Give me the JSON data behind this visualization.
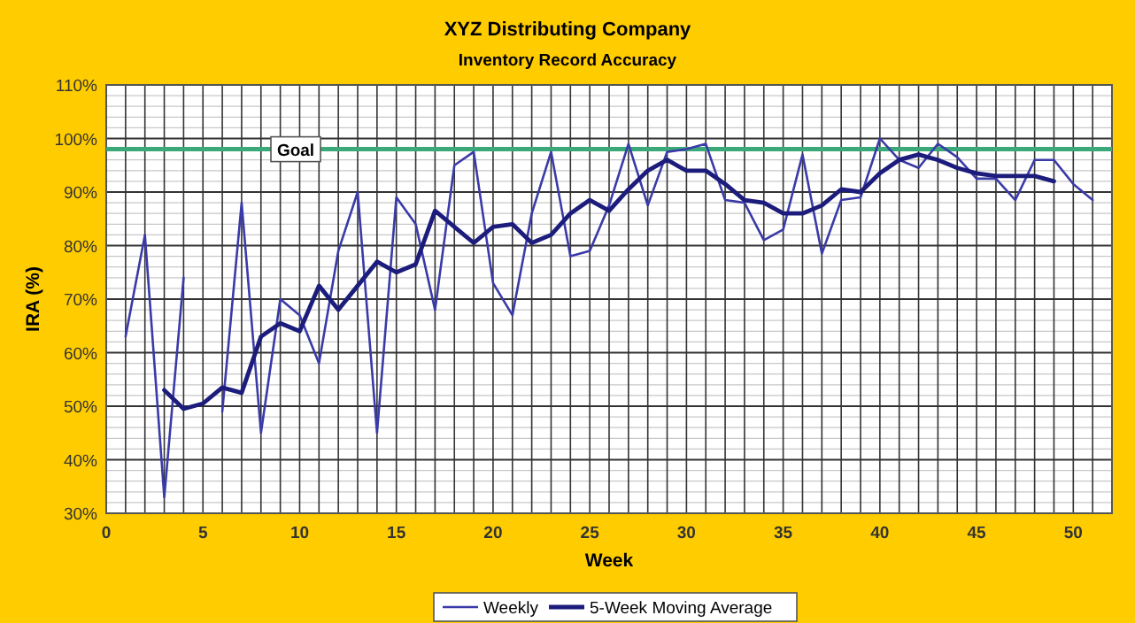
{
  "chart_data": {
    "type": "line",
    "title": "XYZ Distributing Company",
    "subtitle": "Inventory Record Accuracy",
    "xlabel": "Week",
    "ylabel": "IRA (%)",
    "xlim": [
      0,
      52
    ],
    "xticks": [
      0,
      {
        "value": 1,
        "label": null
      },
      {
        "value": 2,
        "label": null
      },
      {
        "value": 3,
        "label": null
      },
      {
        "value": 4,
        "label": null
      },
      5,
      {
        "value": 6,
        "label": null
      },
      {
        "value": 7,
        "label": null
      },
      {
        "value": 8,
        "label": null
      },
      {
        "value": 9,
        "label": null
      },
      10,
      {
        "value": 11,
        "label": null
      },
      {
        "value": 12,
        "label": null
      },
      {
        "value": 13,
        "label": null
      },
      {
        "value": 14,
        "label": null
      },
      15,
      {
        "value": 16,
        "label": null
      },
      {
        "value": 17,
        "label": null
      },
      {
        "value": 18,
        "label": null
      },
      {
        "value": 19,
        "label": null
      },
      20,
      {
        "value": 21,
        "label": null
      },
      {
        "value": 22,
        "label": null
      },
      {
        "value": 23,
        "label": null
      },
      {
        "value": 24,
        "label": null
      },
      25,
      {
        "value": 26,
        "label": null
      },
      {
        "value": 27,
        "label": null
      },
      {
        "value": 28,
        "label": null
      },
      {
        "value": 29,
        "label": null
      },
      30,
      {
        "value": 31,
        "label": null
      },
      {
        "value": 32,
        "label": null
      },
      {
        "value": 33,
        "label": null
      },
      {
        "value": 34,
        "label": null
      },
      35,
      {
        "value": 36,
        "label": null
      },
      {
        "value": 37,
        "label": null
      },
      {
        "value": 38,
        "label": null
      },
      {
        "value": 39,
        "label": null
      },
      40,
      {
        "value": 41,
        "label": null
      },
      {
        "value": 42,
        "label": null
      },
      {
        "value": 43,
        "label": null
      },
      {
        "value": 44,
        "label": null
      },
      45,
      {
        "value": 46,
        "label": null
      },
      {
        "value": 47,
        "label": null
      },
      {
        "value": 48,
        "label": null
      },
      {
        "value": 49,
        "label": null
      },
      50,
      {
        "value": 51,
        "label": null
      },
      {
        "value": 52,
        "label": null
      }
    ],
    "ylim": [
      30,
      110
    ],
    "yticks": [
      {
        "value": 30,
        "label": "30%"
      },
      {
        "value": 32,
        "label": null
      },
      {
        "value": 34,
        "label": null
      },
      {
        "value": 36,
        "label": null
      },
      {
        "value": 38,
        "label": null
      },
      {
        "value": 40,
        "label": "40%"
      },
      {
        "value": 42,
        "label": null
      },
      {
        "value": 44,
        "label": null
      },
      {
        "value": 46,
        "label": null
      },
      {
        "value": 48,
        "label": null
      },
      {
        "value": 50,
        "label": "50%"
      },
      {
        "value": 52,
        "label": null
      },
      {
        "value": 54,
        "label": null
      },
      {
        "value": 56,
        "label": null
      },
      {
        "value": 58,
        "label": null
      },
      {
        "value": 60,
        "label": "60%"
      },
      {
        "value": 62,
        "label": null
      },
      {
        "value": 64,
        "label": null
      },
      {
        "value": 66,
        "label": null
      },
      {
        "value": 68,
        "label": null
      },
      {
        "value": 70,
        "label": "70%"
      },
      {
        "value": 72,
        "label": null
      },
      {
        "value": 74,
        "label": null
      },
      {
        "value": 76,
        "label": null
      },
      {
        "value": 78,
        "label": null
      },
      {
        "value": 80,
        "label": "80%"
      },
      {
        "value": 82,
        "label": null
      },
      {
        "value": 84,
        "label": null
      },
      {
        "value": 86,
        "label": null
      },
      {
        "value": 88,
        "label": null
      },
      {
        "value": 90,
        "label": "90%"
      },
      {
        "value": 92,
        "label": null
      },
      {
        "value": 94,
        "label": null
      },
      {
        "value": 96,
        "label": null
      },
      {
        "value": 98,
        "label": null
      },
      {
        "value": 100,
        "label": "100%"
      },
      {
        "value": 102,
        "label": null
      },
      {
        "value": 104,
        "label": null
      },
      {
        "value": 106,
        "label": null
      },
      {
        "value": 108,
        "label": null
      },
      {
        "value": 110,
        "label": "110%"
      }
    ],
    "grid": true,
    "legend": "bottom",
    "marker": "none",
    "series": [
      {
        "name": "Weekly",
        "color": "#3a3aa8",
        "x": [
          1,
          2,
          3,
          4,
          5,
          6,
          7,
          8,
          9,
          10,
          11,
          12,
          13,
          14,
          15,
          16,
          17,
          18,
          19,
          20,
          21,
          22,
          23,
          24,
          25,
          26,
          27,
          28,
          29,
          30,
          31,
          32,
          33,
          34,
          35,
          36,
          37,
          38,
          39,
          40,
          41,
          42,
          43,
          44,
          45,
          46,
          47,
          48,
          49,
          50,
          51
        ],
        "values": [
          63,
          82,
          33,
          74,
          null,
          49,
          88,
          45,
          70,
          67,
          58,
          79,
          90,
          45,
          89,
          84,
          68,
          95,
          97.5,
          73,
          67,
          86,
          97.5,
          78,
          79,
          87.5,
          99,
          87.5,
          97.5,
          98,
          99,
          88.5,
          88,
          81,
          83,
          97,
          78.5,
          88.5,
          89,
          100,
          96,
          94.5,
          99,
          96.5,
          92.5,
          92.5,
          88.5,
          96,
          96,
          91.5,
          88.5
        ]
      },
      {
        "name": "5-Week Moving Average",
        "color": "#1c1c7c",
        "x": [
          3,
          4,
          5,
          6,
          7,
          8,
          9,
          10,
          11,
          12,
          13,
          14,
          15,
          16,
          17,
          18,
          19,
          20,
          21,
          22,
          23,
          24,
          25,
          26,
          27,
          28,
          29,
          30,
          31,
          32,
          33,
          34,
          35,
          36,
          37,
          38,
          39,
          40,
          41,
          42,
          43,
          44,
          45,
          46,
          47,
          48,
          49
        ],
        "values": [
          53,
          49.5,
          50.5,
          53.5,
          52.5,
          63,
          65.5,
          64,
          72.5,
          68,
          72.5,
          77,
          75,
          76.5,
          86.5,
          83.5,
          80.5,
          83.5,
          84,
          80.5,
          82,
          86,
          88.5,
          86.5,
          90.5,
          94,
          96,
          94,
          94,
          91.5,
          88.5,
          88,
          86,
          86,
          87.5,
          90.5,
          90,
          93.5,
          96,
          97,
          96,
          94.5,
          93.5,
          93,
          93,
          93,
          92
        ]
      }
    ],
    "ref_lines": [
      {
        "axis": "y",
        "value": 98,
        "label": "Goal",
        "color": "#3aa878"
      }
    ]
  }
}
